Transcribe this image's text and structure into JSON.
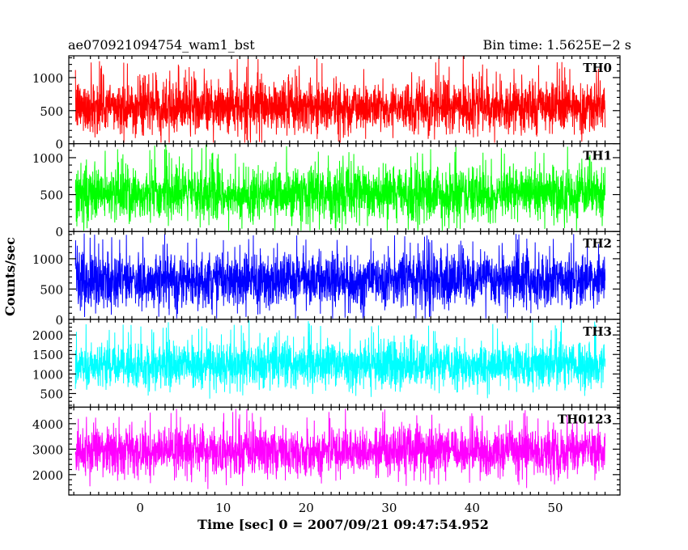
{
  "header": {
    "title": "ae070921094754_wam1_bst",
    "bin_time": "Bin time: 1.5625E−2 s"
  },
  "chart_data": {
    "type": "line",
    "title": "ae070921094754_wam1_bst",
    "subtitle": "Bin time: 1.5625E−2 s",
    "xlabel": "Time [sec] 0 = 2007/09/21 09:47:54.952",
    "ylabel": "Counts/sec",
    "xlim": [
      -8.6,
      57.8
    ],
    "x_data_range": [
      -7.8,
      56.0
    ],
    "x_ticks": [
      0,
      10,
      20,
      30,
      40,
      50
    ],
    "grid": false,
    "panels": [
      {
        "name": "TH0",
        "color": "#ff0000",
        "ylim": [
          0,
          1330
        ],
        "y_ticks": [
          0,
          500,
          1000
        ],
        "mean": 560,
        "noise_sd": 200,
        "spike_max": 1300
      },
      {
        "name": "TH1",
        "color": "#00ff00",
        "ylim": [
          0,
          1190
        ],
        "y_ticks": [
          0,
          500,
          1000
        ],
        "mean": 500,
        "noise_sd": 185,
        "spike_max": 1180
      },
      {
        "name": "TH2",
        "color": "#0000ff",
        "ylim": [
          0,
          1450
        ],
        "y_ticks": [
          0,
          500,
          1000
        ],
        "mean": 640,
        "noise_sd": 225,
        "spike_max": 1420
      },
      {
        "name": "TH3",
        "color": "#00ffff",
        "ylim": [
          150,
          2400
        ],
        "y_ticks": [
          500,
          1000,
          1500,
          2000
        ],
        "mean": 1230,
        "noise_sd": 300,
        "spike_max": 2400
      },
      {
        "name": "TH0123",
        "color": "#ff00ff",
        "ylim": [
          1200,
          4650
        ],
        "y_ticks": [
          2000,
          3000,
          4000
        ],
        "mean": 2920,
        "noise_sd": 470,
        "spike_max": 4600
      }
    ]
  }
}
